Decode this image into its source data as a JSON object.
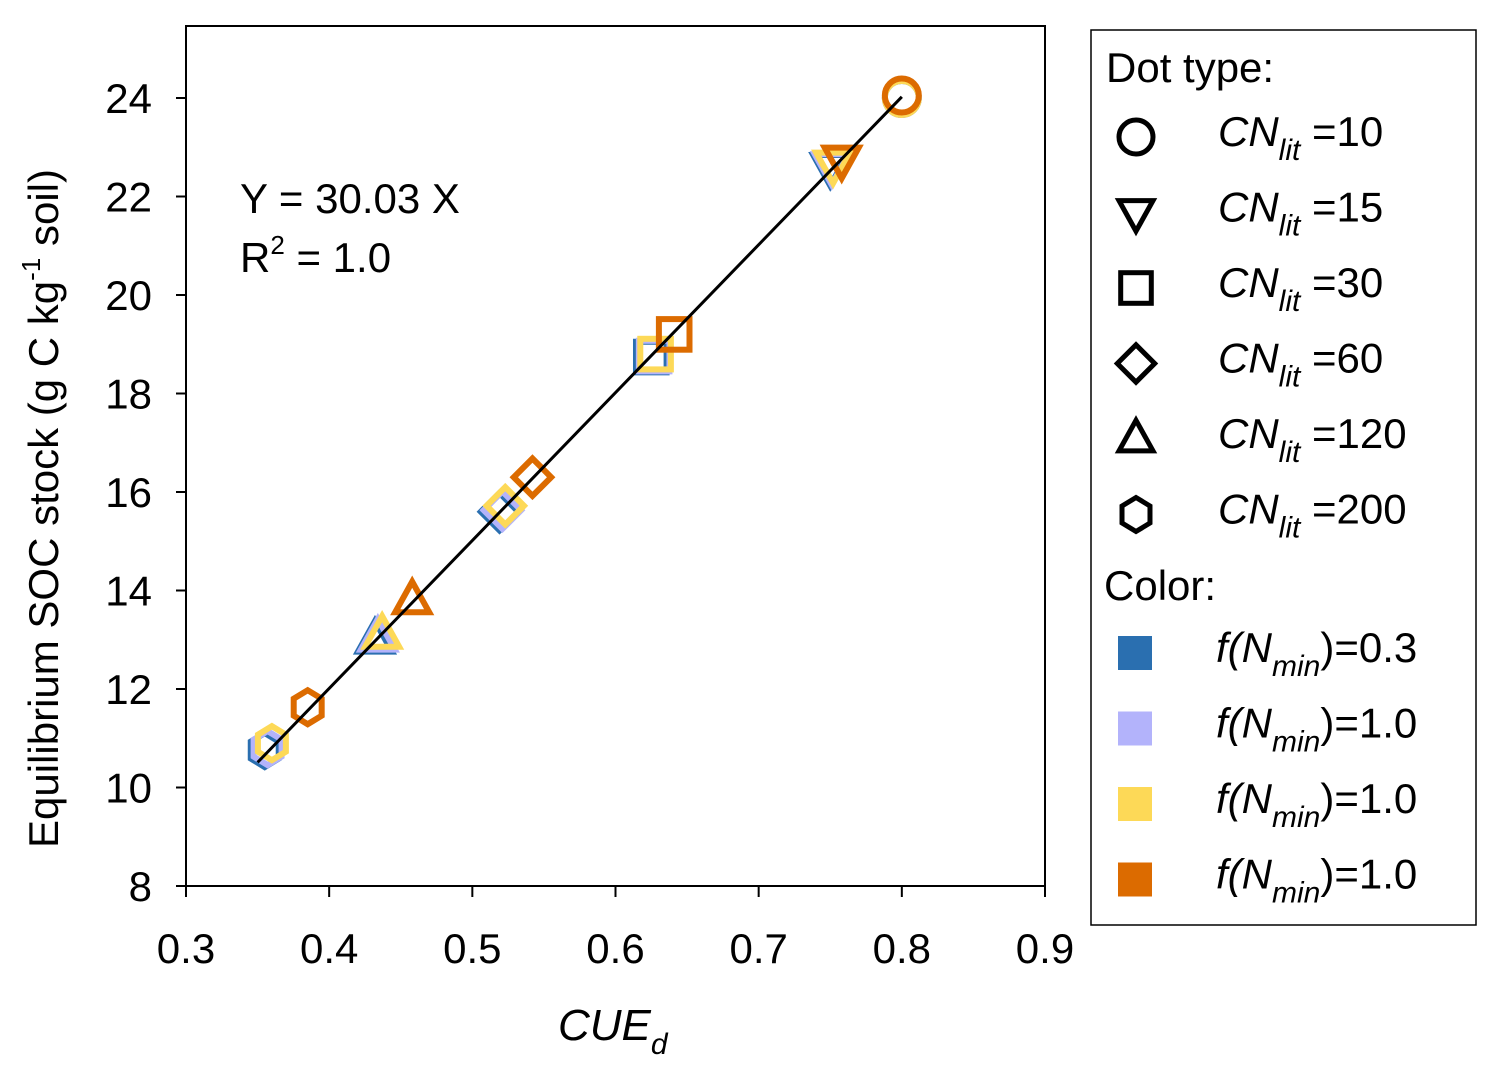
{
  "chart_data": {
    "type": "scatter",
    "xlabel": "CUE",
    "xlabel_sub": "d",
    "ylabel": "Equilibrium SOC stock (g C kg",
    "ylabel_sup": "-1",
    "ylabel_tail": " soil)",
    "xlim": [
      0.3,
      0.9
    ],
    "ylim": [
      8,
      25.5
    ],
    "xticks": [
      "0.3",
      "0.4",
      "0.5",
      "0.6",
      "0.7",
      "0.8",
      "0.9"
    ],
    "yticks": [
      "8",
      "10",
      "12",
      "14",
      "16",
      "18",
      "20",
      "22",
      "24"
    ],
    "grid": false,
    "legend_placement": "right",
    "annotation": {
      "equation": "Y = 30.03 X",
      "r2_prefix": "R",
      "r2_sup": "2",
      "r2_suffix": " = 1.0"
    },
    "fit_line": {
      "slope": 30.03,
      "x_range": [
        0.35,
        0.8
      ]
    },
    "legend": {
      "dot_title": "Dot type:",
      "markers": [
        {
          "shape": "circle",
          "label": "CN",
          "sub": "lit",
          "value": " =10"
        },
        {
          "shape": "triangle-down",
          "label": "CN",
          "sub": "lit",
          "value": " =15"
        },
        {
          "shape": "square",
          "label": "CN",
          "sub": "lit",
          "value": " =30"
        },
        {
          "shape": "diamond",
          "label": "CN",
          "sub": "lit",
          "value": " =60"
        },
        {
          "shape": "triangle-up",
          "label": "CN",
          "sub": "lit",
          "value": " =120"
        },
        {
          "shape": "hexagon",
          "label": "CN",
          "sub": "lit",
          "value": " =200"
        }
      ],
      "color_title": "Color:",
      "colors": [
        {
          "color": "#2a6fb0",
          "pre": "f(N",
          "sub": "min",
          "post": ")=0.3"
        },
        {
          "color": "#b3b3fb",
          "pre": "f(N",
          "sub": "min",
          "post": ")=1.0"
        },
        {
          "color": "#fdd957",
          "pre": "f(N",
          "sub": "min",
          "post": ")=1.0"
        },
        {
          "color": "#dc6b00",
          "pre": "f(N",
          "sub": "min",
          "post": ")=1.0"
        }
      ]
    },
    "series": [
      {
        "color": "#2a6fb0",
        "points": [
          {
            "shape": "hexagon",
            "x": 0.355,
            "y": 10.76
          },
          {
            "shape": "triangle-up",
            "x": 0.432,
            "y": 13.0
          },
          {
            "shape": "diamond",
            "x": 0.519,
            "y": 15.6
          },
          {
            "shape": "square",
            "x": 0.625,
            "y": 18.74
          },
          {
            "shape": "triangle-down",
            "x": 0.75,
            "y": 22.6
          },
          {
            "shape": "circle",
            "x": 0.8,
            "y": 24.0
          }
        ]
      },
      {
        "color": "#b3b3fb",
        "points": [
          {
            "shape": "hexagon",
            "x": 0.357,
            "y": 10.8
          },
          {
            "shape": "triangle-up",
            "x": 0.434,
            "y": 13.04
          },
          {
            "shape": "diamond",
            "x": 0.521,
            "y": 15.63
          },
          {
            "shape": "square",
            "x": 0.627,
            "y": 18.76
          },
          {
            "shape": "triangle-down",
            "x": 0.751,
            "y": 22.62
          },
          {
            "shape": "circle",
            "x": 0.8,
            "y": 24.0
          }
        ]
      },
      {
        "color": "#fdd957",
        "points": [
          {
            "shape": "hexagon",
            "x": 0.36,
            "y": 10.9
          },
          {
            "shape": "triangle-up",
            "x": 0.437,
            "y": 13.1
          },
          {
            "shape": "diamond",
            "x": 0.523,
            "y": 15.72
          },
          {
            "shape": "square",
            "x": 0.628,
            "y": 18.8
          },
          {
            "shape": "triangle-down",
            "x": 0.752,
            "y": 22.65
          },
          {
            "shape": "circle",
            "x": 0.8,
            "y": 24.0
          }
        ]
      },
      {
        "color": "#dc6b00",
        "points": [
          {
            "shape": "hexagon",
            "x": 0.385,
            "y": 11.63
          },
          {
            "shape": "triangle-up",
            "x": 0.458,
            "y": 13.8
          },
          {
            "shape": "diamond",
            "x": 0.542,
            "y": 16.3
          },
          {
            "shape": "square",
            "x": 0.641,
            "y": 19.2
          },
          {
            "shape": "triangle-down",
            "x": 0.758,
            "y": 22.75
          },
          {
            "shape": "circle",
            "x": 0.8,
            "y": 24.05
          }
        ]
      }
    ]
  }
}
